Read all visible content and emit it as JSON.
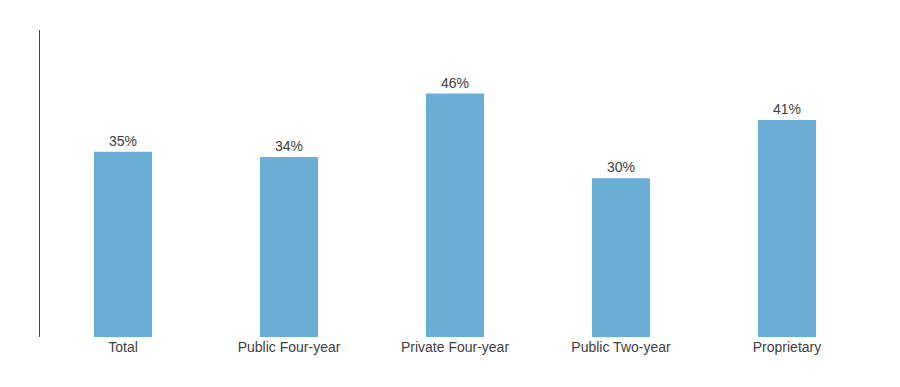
{
  "chart_data": {
    "type": "bar",
    "categories": [
      "Total",
      "Public Four-year",
      "Private Four-year",
      "Public Two-year",
      "Proprietary"
    ],
    "values": [
      35,
      34,
      46,
      30,
      41
    ],
    "value_labels": [
      "35%",
      "34%",
      "46%",
      "30%",
      "41%"
    ],
    "color": "#6aaed6",
    "ylim": [
      0,
      58
    ],
    "yticks": [],
    "data_labels": true,
    "tick_labels": "x",
    "grid": false
  }
}
